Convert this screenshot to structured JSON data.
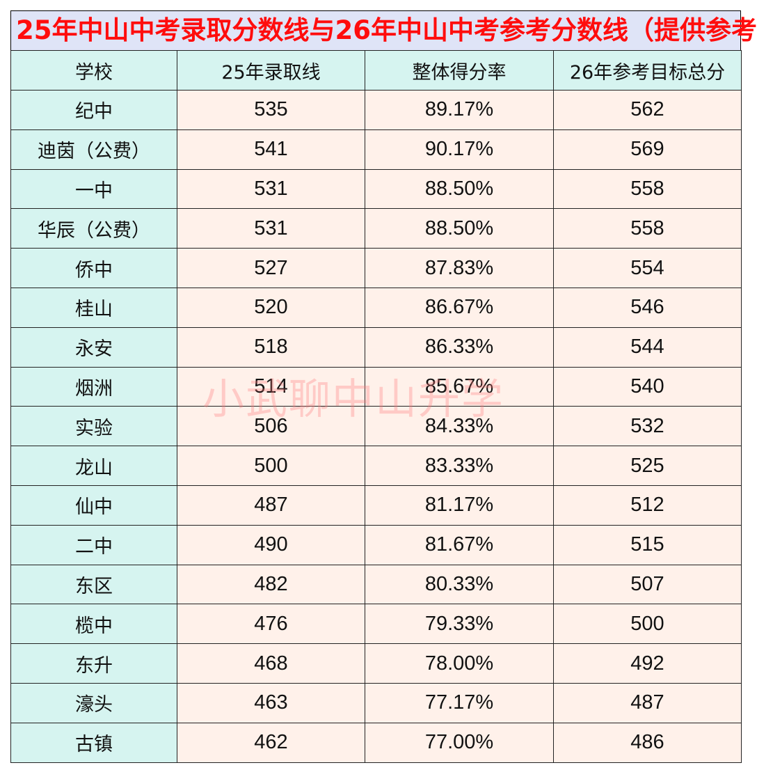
{
  "title": "25年中山中考录取分数线与26年中山中考参考分数线（提供参考",
  "table": {
    "headers": [
      "学校",
      "25年录取线",
      "整体得分率",
      "26年参考目标总分"
    ],
    "rows": [
      {
        "school": "纪中",
        "line25": "535",
        "rate": "89.17%",
        "target26": "562"
      },
      {
        "school": "迪茵（公费）",
        "line25": "541",
        "rate": "90.17%",
        "target26": "569"
      },
      {
        "school": "一中",
        "line25": "531",
        "rate": "88.50%",
        "target26": "558"
      },
      {
        "school": "华辰（公费）",
        "line25": "531",
        "rate": "88.50%",
        "target26": "558"
      },
      {
        "school": "侨中",
        "line25": "527",
        "rate": "87.83%",
        "target26": "554"
      },
      {
        "school": "桂山",
        "line25": "520",
        "rate": "86.67%",
        "target26": "546"
      },
      {
        "school": "永安",
        "line25": "518",
        "rate": "86.33%",
        "target26": "544"
      },
      {
        "school": "烟洲",
        "line25": "514",
        "rate": "85.67%",
        "target26": "540"
      },
      {
        "school": "实验",
        "line25": "506",
        "rate": "84.33%",
        "target26": "532"
      },
      {
        "school": "龙山",
        "line25": "500",
        "rate": "83.33%",
        "target26": "525"
      },
      {
        "school": "仙中",
        "line25": "487",
        "rate": "81.17%",
        "target26": "512"
      },
      {
        "school": "二中",
        "line25": "490",
        "rate": "81.67%",
        "target26": "515"
      },
      {
        "school": "东区",
        "line25": "482",
        "rate": "80.33%",
        "target26": "507"
      },
      {
        "school": "榄中",
        "line25": "476",
        "rate": "79.33%",
        "target26": "500"
      },
      {
        "school": "东升",
        "line25": "468",
        "rate": "78.00%",
        "target26": "492"
      },
      {
        "school": "濠头",
        "line25": "463",
        "rate": "77.17%",
        "target26": "487"
      },
      {
        "school": "古镇",
        "line25": "462",
        "rate": "77.00%",
        "target26": "486"
      }
    ]
  },
  "watermark": "小武聊中山升学",
  "colors": {
    "title_text": "#ff0d0d",
    "title_bg": "#dfe4f7",
    "school_col_bg": "#d6f4f0",
    "value_cells_bg": "#fff1ea",
    "watermark": "#ff7878"
  }
}
